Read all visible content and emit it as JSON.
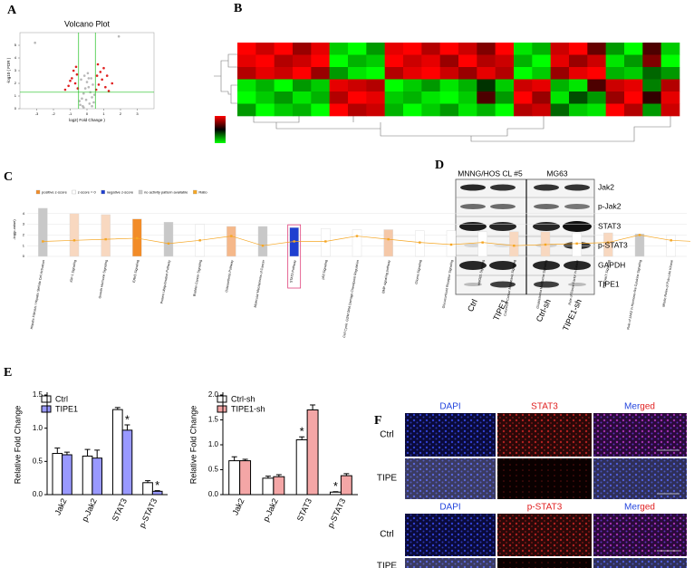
{
  "panels": {
    "a": "A",
    "b": "B",
    "c": "C",
    "d": "D",
    "e": "E",
    "f": "F"
  },
  "chart_data": [
    {
      "type": "scatter",
      "title": "Volcano Plot",
      "xlabel": "log2( Fold Change )",
      "ylabel": "-log10 ( FDR )",
      "xlim": [
        -4,
        4
      ],
      "ylim": [
        0,
        6
      ],
      "xticks": [
        -3,
        -2,
        -1,
        0,
        1,
        2,
        3
      ],
      "yticks": [
        0,
        1,
        2,
        3,
        4,
        5
      ],
      "threshold_x": [
        -0.5,
        0.5
      ],
      "threshold_y": 1.3,
      "threshold_color": "#22c022",
      "series": [
        {
          "color": "#b8b8b8",
          "x": [
            -0.4,
            -0.3,
            -0.2,
            -0.1,
            0,
            0.1,
            0.2,
            0.3,
            0.4,
            -0.35,
            -0.15,
            0.05,
            0.25,
            0.45,
            -0.45,
            -0.25,
            0.15,
            0.35,
            -0.05,
            0.1,
            -3.1,
            1.9,
            -0.2,
            0.3
          ],
          "y": [
            0.3,
            0.8,
            1.2,
            1.6,
            2.1,
            1.7,
            1.3,
            0.9,
            0.5,
            2.3,
            2.6,
            2.8,
            2.4,
            1.1,
            0.6,
            0.2,
            0.4,
            1.9,
            0.7,
            2.4,
            5.2,
            5.7,
            0.1,
            0.2
          ]
        },
        {
          "color": "#e02020",
          "x": [
            0.55,
            0.7,
            0.9,
            1.1,
            1.3,
            0.6,
            0.8,
            1.0,
            1.5,
            0.65,
            -0.55,
            -0.7,
            -0.9,
            -1.1,
            -1.3,
            -0.6,
            -0.8,
            -1.0,
            -0.65,
            1.2
          ],
          "y": [
            1.5,
            1.9,
            2.3,
            1.7,
            1.4,
            2.6,
            2.9,
            3.2,
            2.0,
            3.5,
            1.6,
            2.0,
            2.4,
            1.8,
            1.5,
            2.7,
            3.0,
            2.2,
            3.3,
            2.6
          ]
        }
      ]
    },
    {
      "type": "heatmap",
      "low_color": "#00ff00",
      "mid_color": "#000000",
      "high_color": "#ff0000",
      "matrix": [
        [
          1,
          0.8,
          1,
          0.6,
          0.9,
          -0.8,
          -1,
          -0.6,
          0.9,
          1,
          0.7,
          1,
          0.8,
          0.5,
          1,
          -0.9,
          -0.7,
          0.8,
          1,
          0.4,
          -0.6,
          -1,
          0.3,
          -0.8
        ],
        [
          0.9,
          1,
          0.7,
          0.8,
          1,
          -1,
          -0.7,
          -0.8,
          1,
          0.8,
          0.9,
          0.6,
          1,
          0.7,
          0.8,
          -0.7,
          -1,
          0.9,
          0.6,
          0.8,
          -0.9,
          -0.6,
          0.5,
          -1
        ],
        [
          0.7,
          0.9,
          0.8,
          1,
          0.6,
          -0.6,
          -0.9,
          -1,
          0.7,
          0.9,
          1,
          0.8,
          0.6,
          0.9,
          0.7,
          -1,
          -0.8,
          0.6,
          0.9,
          1,
          -0.7,
          -0.8,
          -0.4,
          -0.6
        ],
        [
          -0.9,
          -0.7,
          -1,
          -0.6,
          -0.8,
          0.9,
          0.8,
          0.7,
          -1,
          -0.8,
          -0.6,
          -0.9,
          -0.7,
          -0.2,
          -0.8,
          0.8,
          0.9,
          -0.7,
          -0.9,
          0.3,
          0.8,
          0.9,
          -0.5,
          0.7
        ],
        [
          -1,
          -0.8,
          -0.6,
          -0.9,
          -0.7,
          0.7,
          1,
          0.9,
          -0.8,
          -0.7,
          -0.9,
          -1,
          -0.8,
          0.3,
          -0.6,
          1,
          0.6,
          -0.9,
          -0.3,
          -0.6,
          0.6,
          1,
          0.2,
          0.9
        ],
        [
          -0.6,
          -1,
          -0.8,
          -0.7,
          -1,
          1,
          0.7,
          0.8,
          -0.7,
          -1,
          -0.8,
          -0.6,
          -0.9,
          -0.7,
          -1,
          0.7,
          0.8,
          -0.4,
          -0.8,
          -0.9,
          1,
          0.7,
          -0.6,
          0.8
        ]
      ]
    },
    {
      "type": "bar",
      "ylabel": "-log(p-value)",
      "ylim": [
        0,
        5
      ],
      "yticks": [
        0,
        1,
        2,
        3,
        4
      ],
      "grid": true,
      "legend": [
        {
          "label": "positive z-score",
          "color": "#f28c28"
        },
        {
          "label": "z-score = 0",
          "color": "#ffffff"
        },
        {
          "label": "negative z-score",
          "color": "#1f3fd0"
        },
        {
          "label": "no activity pattern available",
          "color": "#cccccc"
        },
        {
          "label": "Ratio",
          "color": "#f5a623"
        }
      ],
      "categories": [
        "Hepatic Fibrosis / Hepatic Stellate Cell Activation",
        "IGF-1 Signaling",
        "Growth Hormone Signaling",
        "ERK5 Signaling",
        "Protein Ubiquitination Pathway",
        "Bladder Cancer Signaling",
        "Osteoarthritis Pathway",
        "Molecular Mechanisms of Cancer",
        "STAT3 Pathway",
        "p53 Signaling",
        "Cell Cycle: G2/M DNA Damage Checkpoint Regulation",
        "BMP signaling pathway",
        "Glioma Signaling",
        "Glucocorticoid Receptor Signaling",
        "HMGB1 Signaling",
        "Colorectal Cancer Metastasis Signaling",
        "Glioblastoma Multiforme Signaling",
        "Role of Tissue Factor in Cancer",
        "PI3K/AKT Signaling",
        "Role of JAK2 in Hormone-like Cytokine Signaling",
        "Mitotic Roles of Polo-Like Kinase"
      ],
      "values": [
        4.5,
        4.0,
        3.9,
        3.5,
        3.2,
        3.0,
        2.8,
        2.8,
        2.7,
        2.6,
        2.5,
        2.5,
        2.4,
        2.4,
        2.3,
        2.3,
        2.3,
        2.2,
        2.2,
        2.1,
        2.0
      ],
      "colors": [
        "#c8c8c8",
        "#f8d8c0",
        "#f8d8c0",
        "#f28c28",
        "#c8c8c8",
        "#ffffff",
        "#f5b88a",
        "#c8c8c8",
        "#1f3fd0",
        "#ffffff",
        "#ffffff",
        "#f5c8a8",
        "#ffffff",
        "#ffffff",
        "#ffffff",
        "#f8d8c0",
        "#f8d8c0",
        "#ffffff",
        "#f8d8c0",
        "#c8c8c8",
        "#ffffff"
      ],
      "highlight": 8,
      "highlight_color": "#e0407a",
      "ratio": {
        "color": "#f5a623",
        "values": [
          1.4,
          1.5,
          1.6,
          1.7,
          1.2,
          1.5,
          1.9,
          1.0,
          1.4,
          1.4,
          1.9,
          1.6,
          1.3,
          1.1,
          1.3,
          1.0,
          1.1,
          1.2,
          1.3,
          2.0,
          1.5
        ]
      }
    },
    {
      "type": "bar",
      "ylabel": "Relative Fold Change",
      "ylim": [
        0,
        1.5
      ],
      "yticks": [
        {
          "value": 0,
          "label": "0.0"
        },
        {
          "value": 0.5,
          "label": "0.5"
        },
        {
          "value": 1,
          "label": "1.0"
        },
        {
          "value": 1.5,
          "label": "1.5"
        }
      ],
      "categories": [
        "Jak2",
        "p-Jak2",
        "STAT3",
        "p-STAT3"
      ],
      "series": [
        {
          "name": "Ctrl",
          "color": "#ffffff",
          "values": [
            0.62,
            0.58,
            1.28,
            0.18
          ],
          "errors": [
            0.08,
            0.1,
            0.03,
            0.03
          ],
          "labels": [
            null,
            null,
            null,
            null
          ]
        },
        {
          "name": "TIPE1",
          "color": "#9999ff",
          "values": [
            0.6,
            0.55,
            0.97,
            0.05
          ],
          "errors": [
            0.04,
            0.12,
            0.08,
            0.01
          ],
          "labels": [
            null,
            null,
            "*",
            "*"
          ]
        }
      ]
    },
    {
      "type": "bar",
      "ylabel": "Relative Fold Change",
      "ylim": [
        0,
        2
      ],
      "yticks": [
        {
          "value": 0,
          "label": "0.0"
        },
        {
          "value": 0.5,
          "label": "0.5"
        },
        {
          "value": 1,
          "label": "1.0"
        },
        {
          "value": 1.5,
          "label": "1.5"
        },
        {
          "value": 2,
          "label": "2.0"
        }
      ],
      "categories": [
        "Jak2",
        "p-Jak2",
        "STAT3",
        "p-STAT3"
      ],
      "series": [
        {
          "name": "Ctrl-sh",
          "color": "#ffffff",
          "values": [
            0.68,
            0.33,
            1.1,
            0.05
          ],
          "errors": [
            0.08,
            0.04,
            0.06,
            0.01
          ],
          "labels": [
            null,
            null,
            "*",
            "*"
          ]
        },
        {
          "name": "TIPE1-sh",
          "color": "#f4a6a6",
          "values": [
            0.68,
            0.36,
            1.7,
            0.38
          ],
          "errors": [
            0.03,
            0.04,
            0.1,
            0.04
          ],
          "labels": [
            null,
            null,
            null,
            null
          ]
        }
      ]
    }
  ],
  "western": {
    "groups": [
      "MNNG/HOS CL #5",
      "MG63"
    ],
    "proteins": [
      "Jak2",
      "p-Jak2",
      "STAT3",
      "p-STAT3",
      "GAPDH",
      "TIPE1"
    ],
    "lanes": [
      "Ctrl",
      "TIPE1",
      "Ctrl-sh",
      "TIPE1-sh"
    ]
  },
  "fluorescence": {
    "top": {
      "columns": [
        "DAPI",
        "STAT3",
        "Merged"
      ],
      "rows": [
        "Ctrl",
        "TIPE"
      ]
    },
    "bottom": {
      "columns": [
        "DAPI",
        "p-STAT3",
        "Merged"
      ],
      "rows": [
        "Ctrl",
        "TIPE"
      ]
    }
  }
}
